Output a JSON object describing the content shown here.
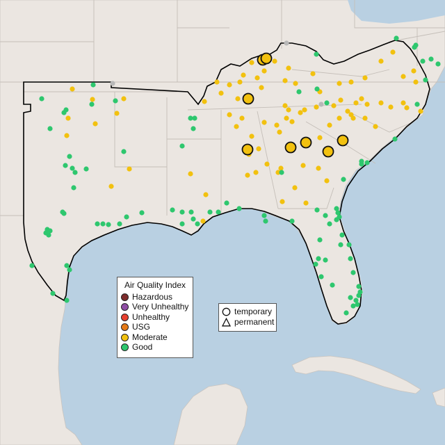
{
  "legend": {
    "title": "Air Quality Index",
    "categories": [
      {
        "label": "Hazardous",
        "color": "#7e2d2d"
      },
      {
        "label": "Very Unhealthy",
        "color": "#8f4ea5"
      },
      {
        "label": "Unhealthy",
        "color": "#e8402f"
      },
      {
        "label": "USG",
        "color": "#e57a17"
      },
      {
        "label": "Moderate",
        "color": "#f2c10f"
      },
      {
        "label": "Good",
        "color": "#2ec76e"
      }
    ]
  },
  "shape_legend": {
    "items": [
      {
        "label": "temporary",
        "icon": "circle-icon"
      },
      {
        "label": "permanent",
        "icon": "triangle-icon"
      }
    ]
  },
  "map": {
    "land_color": "#ebe6e1",
    "water_color": "#b9d0e2",
    "no_data_color": "#b8b8b8"
  }
}
